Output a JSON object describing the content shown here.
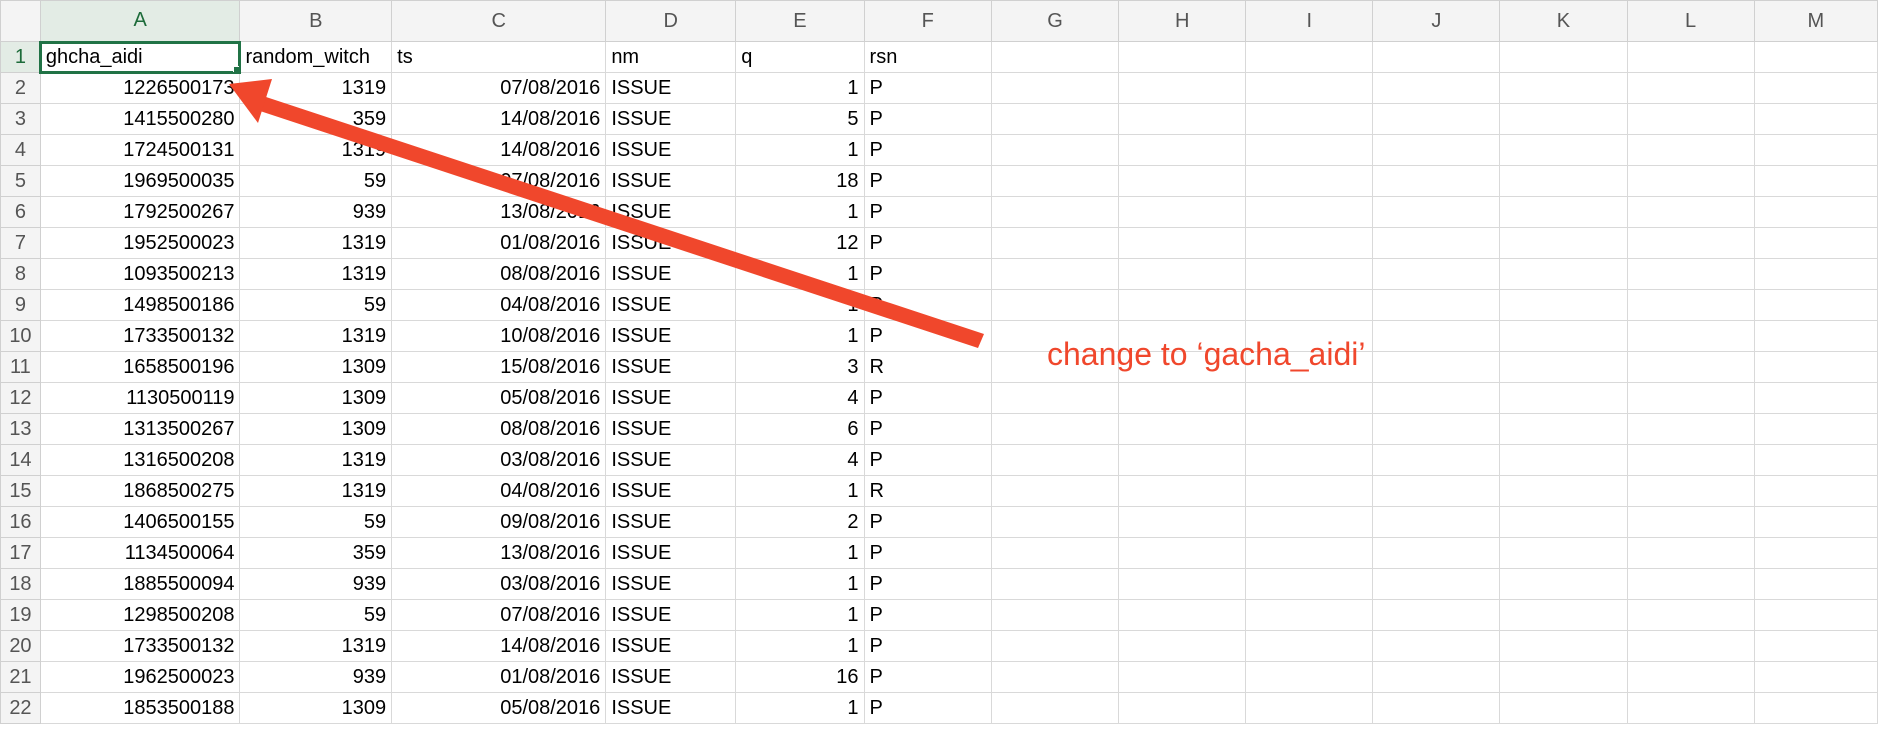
{
  "columns": [
    "A",
    "B",
    "C",
    "D",
    "E",
    "F",
    "G",
    "H",
    "I",
    "J",
    "K",
    "L",
    "M"
  ],
  "rows": [
    {
      "n": "1",
      "a": "ghcha_aidi",
      "b": "random_witch",
      "c": "ts",
      "d": "nm",
      "e": "q",
      "f": "rsn"
    },
    {
      "n": "2",
      "a": "1226500173",
      "b": "1319",
      "c": "07/08/2016",
      "d": "ISSUE",
      "e": "1",
      "f": "P"
    },
    {
      "n": "3",
      "a": "1415500280",
      "b": "359",
      "c": "14/08/2016",
      "d": "ISSUE",
      "e": "5",
      "f": "P"
    },
    {
      "n": "4",
      "a": "1724500131",
      "b": "1319",
      "c": "14/08/2016",
      "d": "ISSUE",
      "e": "1",
      "f": "P"
    },
    {
      "n": "5",
      "a": "1969500035",
      "b": "59",
      "c": "07/08/2016",
      "d": "ISSUE",
      "e": "18",
      "f": "P"
    },
    {
      "n": "6",
      "a": "1792500267",
      "b": "939",
      "c": "13/08/2016",
      "d": "ISSUE",
      "e": "1",
      "f": "P"
    },
    {
      "n": "7",
      "a": "1952500023",
      "b": "1319",
      "c": "01/08/2016",
      "d": "ISSUE",
      "e": "12",
      "f": "P"
    },
    {
      "n": "8",
      "a": "1093500213",
      "b": "1319",
      "c": "08/08/2016",
      "d": "ISSUE",
      "e": "1",
      "f": "P"
    },
    {
      "n": "9",
      "a": "1498500186",
      "b": "59",
      "c": "04/08/2016",
      "d": "ISSUE",
      "e": "1",
      "f": "P"
    },
    {
      "n": "10",
      "a": "1733500132",
      "b": "1319",
      "c": "10/08/2016",
      "d": "ISSUE",
      "e": "1",
      "f": "P"
    },
    {
      "n": "11",
      "a": "1658500196",
      "b": "1309",
      "c": "15/08/2016",
      "d": "ISSUE",
      "e": "3",
      "f": "R"
    },
    {
      "n": "12",
      "a": "1130500119",
      "b": "1309",
      "c": "05/08/2016",
      "d": "ISSUE",
      "e": "4",
      "f": "P"
    },
    {
      "n": "13",
      "a": "1313500267",
      "b": "1309",
      "c": "08/08/2016",
      "d": "ISSUE",
      "e": "6",
      "f": "P"
    },
    {
      "n": "14",
      "a": "1316500208",
      "b": "1319",
      "c": "03/08/2016",
      "d": "ISSUE",
      "e": "4",
      "f": "P"
    },
    {
      "n": "15",
      "a": "1868500275",
      "b": "1319",
      "c": "04/08/2016",
      "d": "ISSUE",
      "e": "1",
      "f": "R"
    },
    {
      "n": "16",
      "a": "1406500155",
      "b": "59",
      "c": "09/08/2016",
      "d": "ISSUE",
      "e": "2",
      "f": "P"
    },
    {
      "n": "17",
      "a": "1134500064",
      "b": "359",
      "c": "13/08/2016",
      "d": "ISSUE",
      "e": "1",
      "f": "P"
    },
    {
      "n": "18",
      "a": "1885500094",
      "b": "939",
      "c": "03/08/2016",
      "d": "ISSUE",
      "e": "1",
      "f": "P"
    },
    {
      "n": "19",
      "a": "1298500208",
      "b": "59",
      "c": "07/08/2016",
      "d": "ISSUE",
      "e": "1",
      "f": "P"
    },
    {
      "n": "20",
      "a": "1733500132",
      "b": "1319",
      "c": "14/08/2016",
      "d": "ISSUE",
      "e": "1",
      "f": "P"
    },
    {
      "n": "21",
      "a": "1962500023",
      "b": "939",
      "c": "01/08/2016",
      "d": "ISSUE",
      "e": "16",
      "f": "P"
    },
    {
      "n": "22",
      "a": "1853500188",
      "b": "1309",
      "c": "05/08/2016",
      "d": "ISSUE",
      "e": "1",
      "f": "P"
    }
  ],
  "selected_cell": "A1",
  "annotation": {
    "text": "change to ‘gacha_aidi’",
    "color": "#f0472c"
  }
}
